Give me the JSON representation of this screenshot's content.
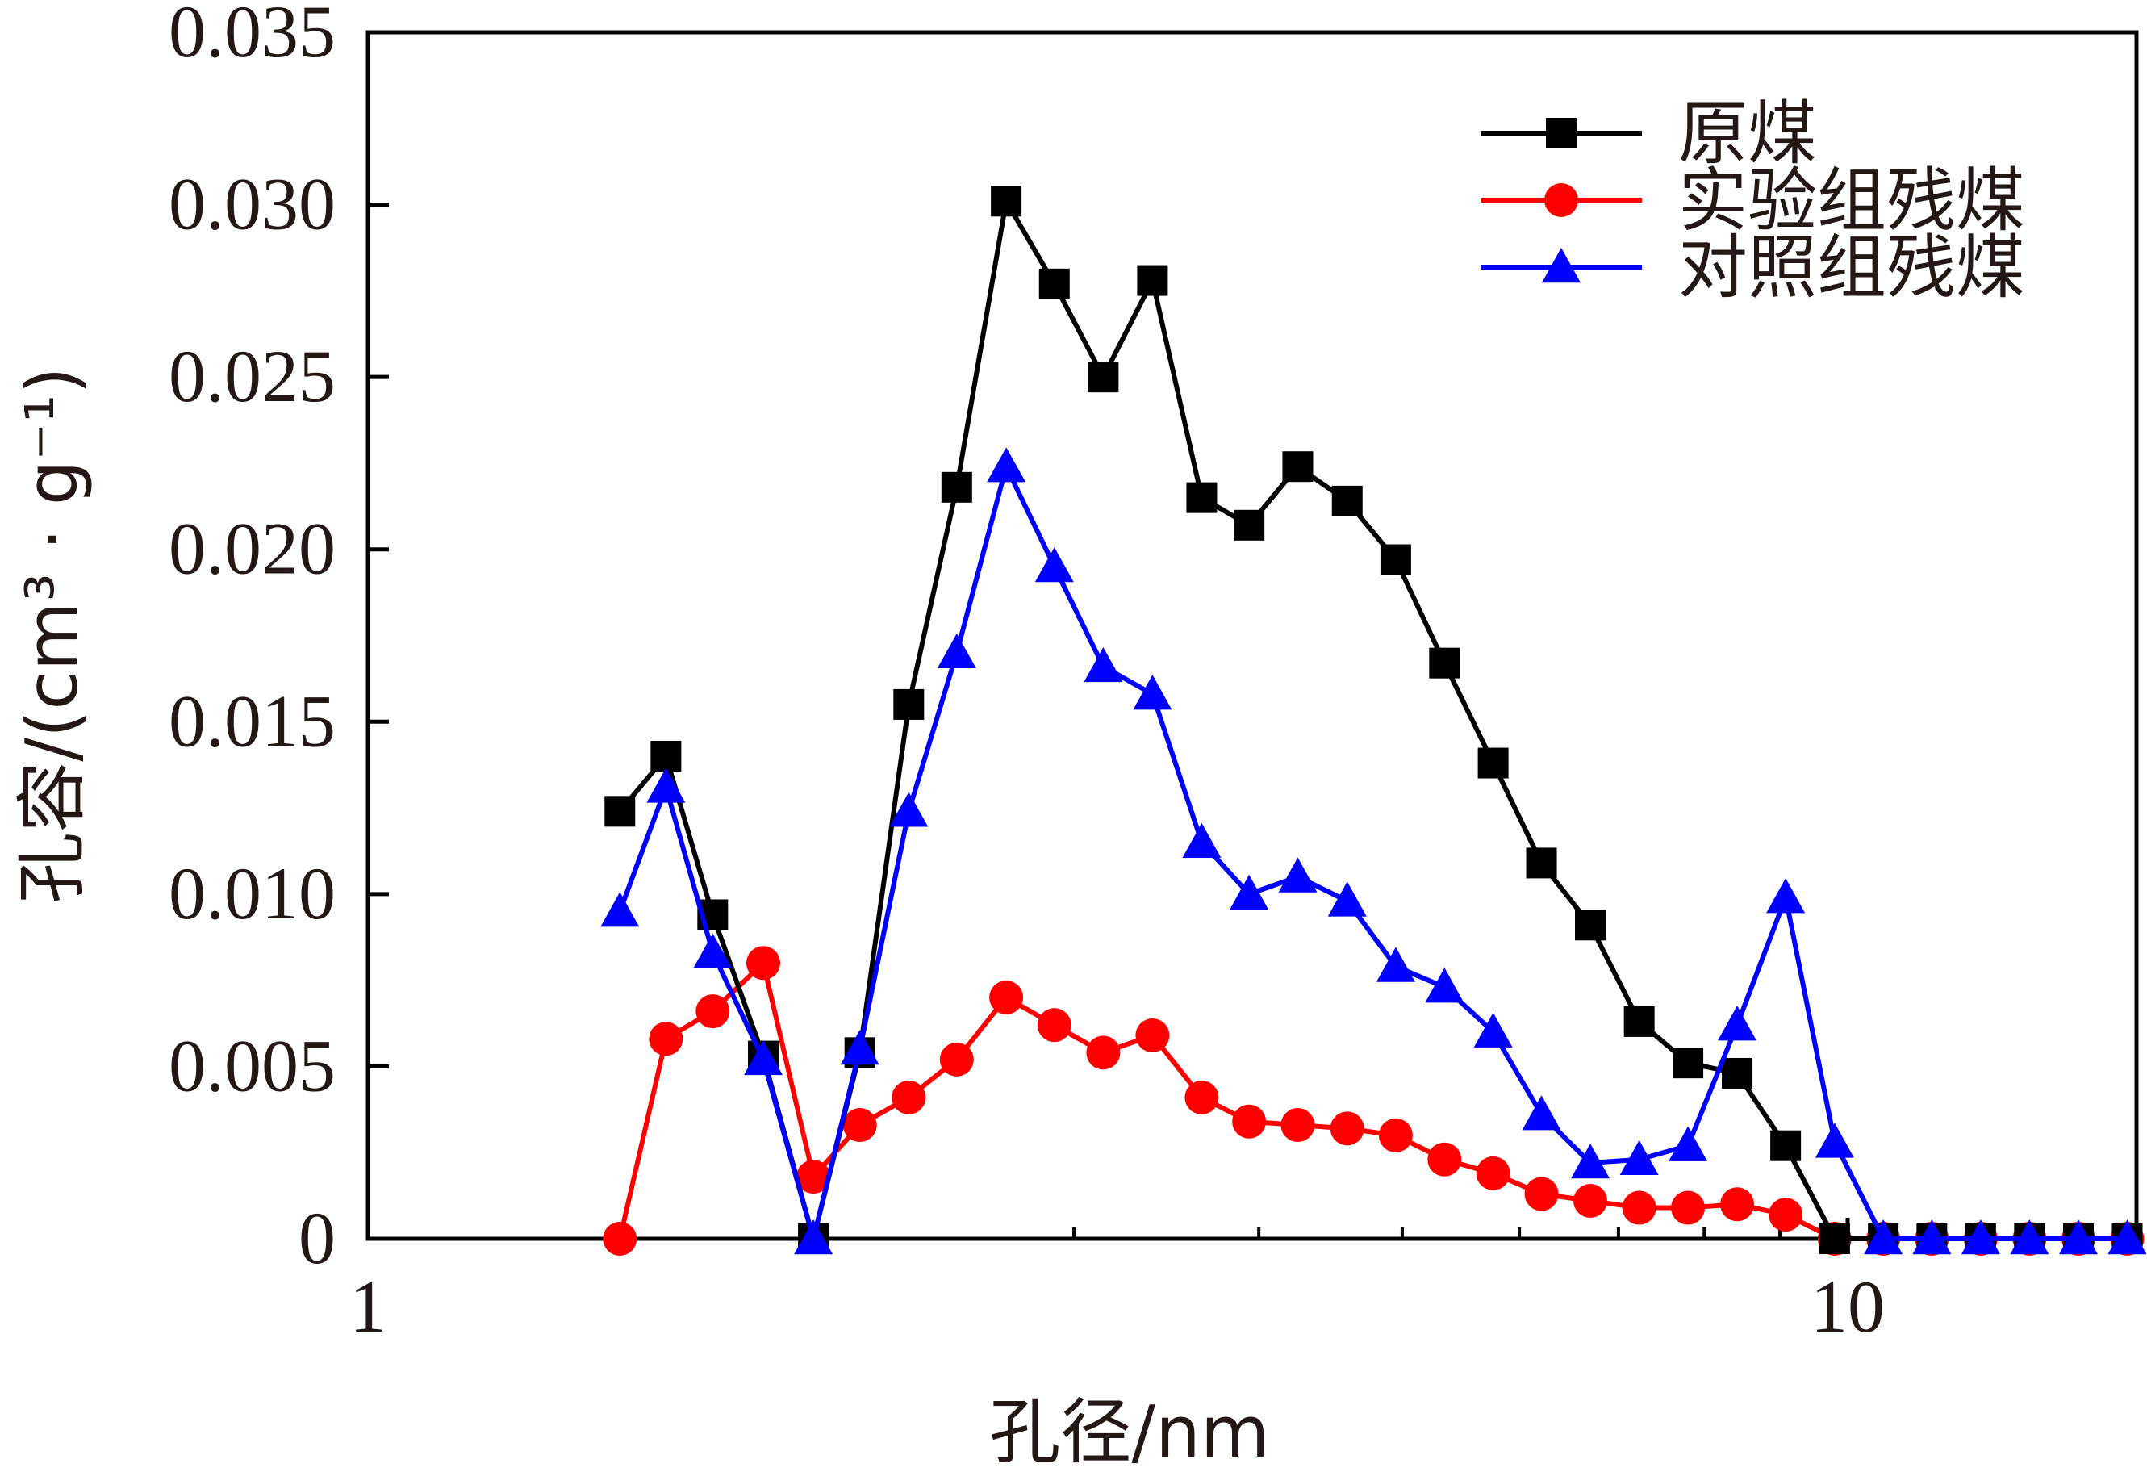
{
  "chart_data": {
    "type": "line",
    "xscale": "log",
    "xlabel": "孔径/nm",
    "ylabel": "孔容/(cm³ · g⁻¹)",
    "xlim": [
      1,
      18
    ],
    "ylim": [
      0,
      0.035
    ],
    "xticks": [
      {
        "value": 1,
        "label": "1"
      },
      {
        "value": 10,
        "label": "10"
      }
    ],
    "yticks": [
      {
        "value": 0,
        "label": "0"
      },
      {
        "value": 0.005,
        "label": "0.005"
      },
      {
        "value": 0.01,
        "label": "0.010"
      },
      {
        "value": 0.015,
        "label": "0.015"
      },
      {
        "value": 0.02,
        "label": "0.020"
      },
      {
        "value": 0.025,
        "label": "0.025"
      },
      {
        "value": 0.03,
        "label": "0.030"
      },
      {
        "value": 0.035,
        "label": "0.035"
      }
    ],
    "grid": false,
    "legend_position": "top-right",
    "x": [
      1.48,
      1.59,
      1.71,
      1.85,
      2.0,
      2.15,
      2.32,
      2.5,
      2.7,
      2.91,
      3.14,
      3.39,
      3.66,
      3.94,
      4.25,
      4.59,
      4.95,
      5.34,
      5.76,
      6.21,
      6.7,
      7.23,
      7.8,
      8.42,
      9.08,
      9.8,
      10.57,
      11.4,
      12.3,
      13.27,
      14.32,
      15.45
    ],
    "series": [
      {
        "name": "原煤",
        "color": "#000000",
        "marker": "square",
        "values": [
          0.0124,
          0.014,
          0.0094,
          0.0053,
          0.0,
          0.0054,
          0.0155,
          0.0218,
          0.0301,
          0.0277,
          0.025,
          0.0278,
          0.0215,
          0.0207,
          0.0224,
          0.0214,
          0.0197,
          0.0167,
          0.0138,
          0.0109,
          0.0091,
          0.0063,
          0.0051,
          0.0048,
          0.0027,
          0.0,
          0.0,
          0.0,
          0.0,
          0.0,
          0.0,
          0.0
        ]
      },
      {
        "name": "实验组残煤",
        "color": "#ff0000",
        "marker": "circle",
        "values": [
          0.0,
          0.0058,
          0.0066,
          0.008,
          0.0018,
          0.0033,
          0.0041,
          0.0052,
          0.007,
          0.0062,
          0.0054,
          0.0059,
          0.0041,
          0.0034,
          0.0033,
          0.0032,
          0.003,
          0.0023,
          0.0019,
          0.0013,
          0.0011,
          0.0009,
          0.0009,
          0.001,
          0.0007,
          0.0,
          0.0,
          0.0,
          0.0,
          0.0,
          0.0,
          0.0
        ]
      },
      {
        "name": "对照组残煤",
        "color": "#0000ff",
        "marker": "triangle",
        "values": [
          0.0095,
          0.0131,
          0.0083,
          0.0052,
          0.0,
          0.0055,
          0.0124,
          0.017,
          0.0224,
          0.0195,
          0.0166,
          0.0158,
          0.0115,
          0.01,
          0.0105,
          0.0098,
          0.0079,
          0.0073,
          0.006,
          0.0036,
          0.0022,
          0.0023,
          0.0027,
          0.0062,
          0.0099,
          0.0028,
          0.0,
          0.0,
          0.0,
          0.0,
          0.0,
          0.0
        ]
      }
    ]
  }
}
